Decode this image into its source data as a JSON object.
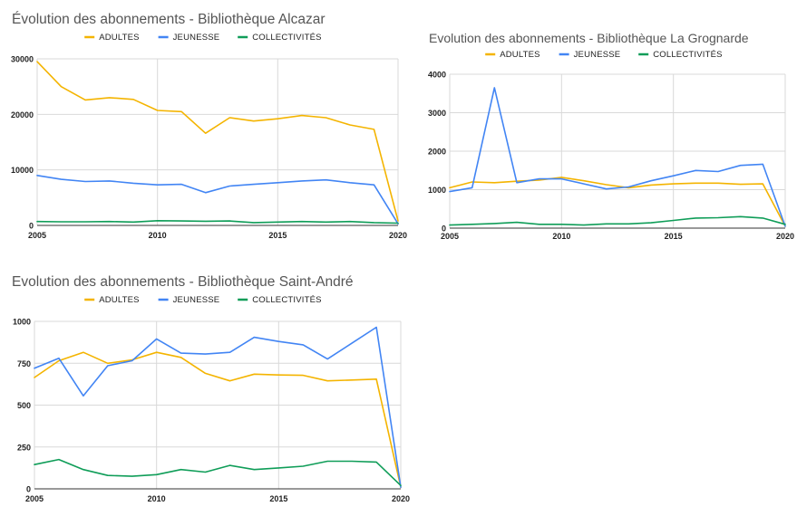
{
  "colors": {
    "adultes": "#f4b400",
    "jeunesse": "#4285f4",
    "collectivites": "#0f9d58"
  },
  "chart_data": [
    {
      "id": "alcazar",
      "type": "line",
      "title": "Évolution des abonnements - Bibliothèque Alcazar",
      "x": [
        2005,
        2006,
        2007,
        2008,
        2009,
        2010,
        2011,
        2012,
        2013,
        2014,
        2015,
        2016,
        2017,
        2018,
        2019,
        2020
      ],
      "xticks": [
        2005,
        2010,
        2015,
        2020
      ],
      "ylim": [
        0,
        30000
      ],
      "yticks": [
        0,
        10000,
        20000,
        30000
      ],
      "legend_position": "top",
      "series": [
        {
          "key": "adultes",
          "name": "ADULTES",
          "values": [
            29500,
            25000,
            22600,
            23000,
            22700,
            20700,
            20500,
            16600,
            19400,
            18800,
            19200,
            19800,
            19400,
            18100,
            17300,
            800
          ]
        },
        {
          "key": "jeunesse",
          "name": "JEUNESSE",
          "values": [
            9000,
            8300,
            7900,
            8000,
            7600,
            7300,
            7400,
            5900,
            7100,
            7400,
            7700,
            8000,
            8200,
            7700,
            7300,
            300
          ]
        },
        {
          "key": "collectivites",
          "name": "COLLECTIVITÉS",
          "values": [
            700,
            650,
            650,
            700,
            600,
            850,
            800,
            750,
            800,
            500,
            600,
            700,
            600,
            700,
            500,
            400
          ]
        }
      ]
    },
    {
      "id": "grognarde",
      "type": "line",
      "title": "Evolution des abonnements - Bibliothèque La Grognarde",
      "x": [
        2005,
        2006,
        2007,
        2008,
        2009,
        2010,
        2011,
        2012,
        2013,
        2014,
        2015,
        2016,
        2017,
        2018,
        2019,
        2020
      ],
      "xticks": [
        2005,
        2010,
        2015,
        2020
      ],
      "ylim": [
        0,
        4000
      ],
      "yticks": [
        0,
        1000,
        2000,
        3000,
        4000
      ],
      "legend_position": "top",
      "series": [
        {
          "key": "adultes",
          "name": "ADULTES",
          "values": [
            1050,
            1200,
            1180,
            1220,
            1250,
            1320,
            1230,
            1130,
            1050,
            1120,
            1150,
            1170,
            1170,
            1140,
            1150,
            50
          ]
        },
        {
          "key": "jeunesse",
          "name": "JEUNESSE",
          "values": [
            950,
            1050,
            3650,
            1180,
            1280,
            1280,
            1150,
            1020,
            1070,
            1230,
            1360,
            1500,
            1470,
            1630,
            1660,
            50
          ]
        },
        {
          "key": "collectivites",
          "name": "COLLECTIVITÉS",
          "values": [
            80,
            100,
            120,
            150,
            100,
            100,
            80,
            110,
            110,
            140,
            200,
            260,
            270,
            300,
            260,
            100
          ]
        }
      ]
    },
    {
      "id": "standre",
      "type": "line",
      "title": "Evolution des abonnements - Bibliothèque Saint-André",
      "x": [
        2005,
        2006,
        2007,
        2008,
        2009,
        2010,
        2011,
        2012,
        2013,
        2014,
        2015,
        2016,
        2017,
        2018,
        2019,
        2020
      ],
      "xticks": [
        2005,
        2010,
        2015,
        2020
      ],
      "ylim": [
        0,
        1000
      ],
      "yticks": [
        0,
        250,
        500,
        750,
        1000
      ],
      "legend_position": "top",
      "series": [
        {
          "key": "adultes",
          "name": "ADULTES",
          "values": [
            665,
            765,
            815,
            750,
            770,
            815,
            785,
            690,
            645,
            685,
            680,
            678,
            645,
            650,
            655,
            10
          ]
        },
        {
          "key": "jeunesse",
          "name": "JEUNESSE",
          "values": [
            720,
            780,
            555,
            735,
            765,
            895,
            810,
            805,
            815,
            905,
            880,
            860,
            775,
            870,
            965,
            10
          ]
        },
        {
          "key": "collectivites",
          "name": "COLLECTIVITÉS",
          "values": [
            145,
            175,
            115,
            80,
            75,
            85,
            115,
            100,
            140,
            115,
            125,
            135,
            165,
            165,
            160,
            20
          ]
        }
      ]
    }
  ]
}
